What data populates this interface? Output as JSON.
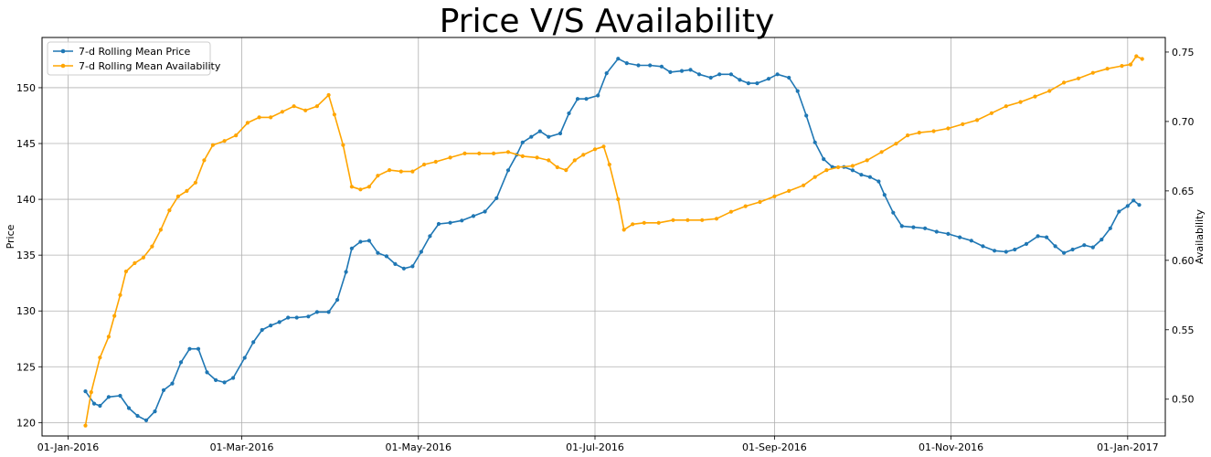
{
  "chart_data": {
    "type": "line",
    "title": "Price V/S Availability",
    "xlabel": "",
    "ylabel": "Price",
    "y2label": "Availability",
    "x_range": [
      "2015-12-23",
      "2017-01-14"
    ],
    "ylim": [
      118.8,
      154.5
    ],
    "y2lim": [
      0.4735,
      0.7605
    ],
    "grid": true,
    "legend_position": "top-left",
    "x_ticks": [
      {
        "date": "2016-01-01",
        "label": "01-Jan-2016"
      },
      {
        "date": "2016-03-01",
        "label": "01-Mar-2016"
      },
      {
        "date": "2016-05-01",
        "label": "01-May-2016"
      },
      {
        "date": "2016-07-01",
        "label": "01-Jul-2016"
      },
      {
        "date": "2016-09-01",
        "label": "01-Sep-2016"
      },
      {
        "date": "2016-11-01",
        "label": "01-Nov-2016"
      },
      {
        "date": "2017-01-01",
        "label": "01-Jan-2017"
      }
    ],
    "y_ticks": [
      120,
      125,
      130,
      135,
      140,
      145,
      150
    ],
    "y2_ticks": [
      0.5,
      0.55,
      0.6,
      0.65,
      0.7,
      0.75
    ],
    "series": [
      {
        "name": "7-d Rolling Mean Price",
        "axis": "left",
        "color": "#1f77b4",
        "points": [
          [
            "2016-01-07",
            122.8
          ],
          [
            "2016-01-10",
            121.7
          ],
          [
            "2016-01-12",
            121.5
          ],
          [
            "2016-01-15",
            122.3
          ],
          [
            "2016-01-19",
            122.4
          ],
          [
            "2016-01-22",
            121.3
          ],
          [
            "2016-01-25",
            120.6
          ],
          [
            "2016-01-28",
            120.2
          ],
          [
            "2016-01-31",
            121.0
          ],
          [
            "2016-02-03",
            122.9
          ],
          [
            "2016-02-06",
            123.5
          ],
          [
            "2016-02-09",
            125.4
          ],
          [
            "2016-02-12",
            126.6
          ],
          [
            "2016-02-15",
            126.6
          ],
          [
            "2016-02-18",
            124.5
          ],
          [
            "2016-02-21",
            123.8
          ],
          [
            "2016-02-24",
            123.6
          ],
          [
            "2016-02-27",
            124.0
          ],
          [
            "2016-03-02",
            125.8
          ],
          [
            "2016-03-05",
            127.2
          ],
          [
            "2016-03-08",
            128.3
          ],
          [
            "2016-03-11",
            128.7
          ],
          [
            "2016-03-14",
            129.0
          ],
          [
            "2016-03-17",
            129.4
          ],
          [
            "2016-03-20",
            129.4
          ],
          [
            "2016-03-24",
            129.5
          ],
          [
            "2016-03-27",
            129.9
          ],
          [
            "2016-03-31",
            129.9
          ],
          [
            "2016-04-03",
            131.0
          ],
          [
            "2016-04-06",
            133.5
          ],
          [
            "2016-04-08",
            135.6
          ],
          [
            "2016-04-11",
            136.2
          ],
          [
            "2016-04-14",
            136.3
          ],
          [
            "2016-04-17",
            135.2
          ],
          [
            "2016-04-20",
            134.9
          ],
          [
            "2016-04-23",
            134.2
          ],
          [
            "2016-04-26",
            133.8
          ],
          [
            "2016-04-29",
            134.0
          ],
          [
            "2016-05-02",
            135.3
          ],
          [
            "2016-05-05",
            136.7
          ],
          [
            "2016-05-08",
            137.8
          ],
          [
            "2016-05-12",
            137.9
          ],
          [
            "2016-05-16",
            138.1
          ],
          [
            "2016-05-20",
            138.5
          ],
          [
            "2016-05-24",
            138.9
          ],
          [
            "2016-05-28",
            140.1
          ],
          [
            "2016-06-01",
            142.6
          ],
          [
            "2016-06-04",
            144.0
          ],
          [
            "2016-06-06",
            145.1
          ],
          [
            "2016-06-09",
            145.6
          ],
          [
            "2016-06-12",
            146.1
          ],
          [
            "2016-06-15",
            145.6
          ],
          [
            "2016-06-19",
            145.9
          ],
          [
            "2016-06-22",
            147.7
          ],
          [
            "2016-06-25",
            149.0
          ],
          [
            "2016-06-28",
            149.0
          ],
          [
            "2016-07-02",
            149.3
          ],
          [
            "2016-07-05",
            151.3
          ],
          [
            "2016-07-09",
            152.6
          ],
          [
            "2016-07-12",
            152.2
          ],
          [
            "2016-07-16",
            152.0
          ],
          [
            "2016-07-20",
            152.0
          ],
          [
            "2016-07-24",
            151.9
          ],
          [
            "2016-07-27",
            151.4
          ],
          [
            "2016-07-31",
            151.5
          ],
          [
            "2016-08-03",
            151.6
          ],
          [
            "2016-08-06",
            151.2
          ],
          [
            "2016-08-10",
            150.9
          ],
          [
            "2016-08-13",
            151.2
          ],
          [
            "2016-08-17",
            151.2
          ],
          [
            "2016-08-20",
            150.7
          ],
          [
            "2016-08-23",
            150.4
          ],
          [
            "2016-08-26",
            150.4
          ],
          [
            "2016-08-30",
            150.8
          ],
          [
            "2016-09-02",
            151.2
          ],
          [
            "2016-09-06",
            150.9
          ],
          [
            "2016-09-09",
            149.7
          ],
          [
            "2016-09-12",
            147.5
          ],
          [
            "2016-09-15",
            145.1
          ],
          [
            "2016-09-18",
            143.6
          ],
          [
            "2016-09-21",
            142.9
          ],
          [
            "2016-09-25",
            142.9
          ],
          [
            "2016-09-28",
            142.6
          ],
          [
            "2016-10-01",
            142.2
          ],
          [
            "2016-10-04",
            142.0
          ],
          [
            "2016-10-07",
            141.6
          ],
          [
            "2016-10-09",
            140.4
          ],
          [
            "2016-10-12",
            138.8
          ],
          [
            "2016-10-15",
            137.6
          ],
          [
            "2016-10-19",
            137.5
          ],
          [
            "2016-10-23",
            137.4
          ],
          [
            "2016-10-27",
            137.1
          ],
          [
            "2016-10-31",
            136.9
          ],
          [
            "2016-11-04",
            136.6
          ],
          [
            "2016-11-08",
            136.3
          ],
          [
            "2016-11-12",
            135.8
          ],
          [
            "2016-11-16",
            135.4
          ],
          [
            "2016-11-20",
            135.3
          ],
          [
            "2016-11-23",
            135.5
          ],
          [
            "2016-11-27",
            136.0
          ],
          [
            "2016-12-01",
            136.7
          ],
          [
            "2016-12-04",
            136.6
          ],
          [
            "2016-12-07",
            135.8
          ],
          [
            "2016-12-10",
            135.2
          ],
          [
            "2016-12-13",
            135.5
          ],
          [
            "2016-12-17",
            135.9
          ],
          [
            "2016-12-20",
            135.7
          ],
          [
            "2016-12-23",
            136.4
          ],
          [
            "2016-12-26",
            137.4
          ],
          [
            "2016-12-29",
            138.9
          ],
          [
            "2017-01-01",
            139.4
          ],
          [
            "2017-01-03",
            139.9
          ],
          [
            "2017-01-05",
            139.5
          ]
        ]
      },
      {
        "name": "7-d Rolling Mean Availability",
        "axis": "right",
        "color": "#ffa500",
        "points": [
          [
            "2016-01-07",
            0.481
          ],
          [
            "2016-01-09",
            0.505
          ],
          [
            "2016-01-12",
            0.53
          ],
          [
            "2016-01-15",
            0.545
          ],
          [
            "2016-01-17",
            0.56
          ],
          [
            "2016-01-19",
            0.575
          ],
          [
            "2016-01-21",
            0.592
          ],
          [
            "2016-01-24",
            0.598
          ],
          [
            "2016-01-27",
            0.602
          ],
          [
            "2016-01-30",
            0.61
          ],
          [
            "2016-02-02",
            0.622
          ],
          [
            "2016-02-05",
            0.636
          ],
          [
            "2016-02-08",
            0.646
          ],
          [
            "2016-02-11",
            0.65
          ],
          [
            "2016-02-14",
            0.656
          ],
          [
            "2016-02-17",
            0.672
          ],
          [
            "2016-02-20",
            0.683
          ],
          [
            "2016-02-24",
            0.686
          ],
          [
            "2016-02-28",
            0.69
          ],
          [
            "2016-03-03",
            0.699
          ],
          [
            "2016-03-07",
            0.703
          ],
          [
            "2016-03-11",
            0.703
          ],
          [
            "2016-03-15",
            0.707
          ],
          [
            "2016-03-19",
            0.711
          ],
          [
            "2016-03-23",
            0.708
          ],
          [
            "2016-03-27",
            0.711
          ],
          [
            "2016-03-31",
            0.719
          ],
          [
            "2016-04-02",
            0.705
          ],
          [
            "2016-04-05",
            0.683
          ],
          [
            "2016-04-08",
            0.653
          ],
          [
            "2016-04-11",
            0.651
          ],
          [
            "2016-04-14",
            0.653
          ],
          [
            "2016-04-17",
            0.661
          ],
          [
            "2016-04-21",
            0.665
          ],
          [
            "2016-04-25",
            0.664
          ],
          [
            "2016-04-29",
            0.664
          ],
          [
            "2016-05-03",
            0.669
          ],
          [
            "2016-05-07",
            0.671
          ],
          [
            "2016-05-12",
            0.674
          ],
          [
            "2016-05-17",
            0.677
          ],
          [
            "2016-05-22",
            0.677
          ],
          [
            "2016-05-27",
            0.677
          ],
          [
            "2016-06-01",
            0.678
          ],
          [
            "2016-06-06",
            0.675
          ],
          [
            "2016-06-11",
            0.674
          ],
          [
            "2016-06-15",
            0.672
          ],
          [
            "2016-06-18",
            0.667
          ],
          [
            "2016-06-21",
            0.665
          ],
          [
            "2016-06-24",
            0.672
          ],
          [
            "2016-06-27",
            0.676
          ],
          [
            "2016-07-01",
            0.68
          ],
          [
            "2016-07-04",
            0.682
          ],
          [
            "2016-07-06",
            0.669
          ],
          [
            "2016-07-09",
            0.644
          ],
          [
            "2016-07-11",
            0.622
          ],
          [
            "2016-07-14",
            0.626
          ],
          [
            "2016-07-18",
            0.627
          ],
          [
            "2016-07-23",
            0.627
          ],
          [
            "2016-07-28",
            0.629
          ],
          [
            "2016-08-02",
            0.629
          ],
          [
            "2016-08-07",
            0.629
          ],
          [
            "2016-08-12",
            0.63
          ],
          [
            "2016-08-17",
            0.635
          ],
          [
            "2016-08-22",
            0.639
          ],
          [
            "2016-08-27",
            0.642
          ],
          [
            "2016-09-01",
            0.646
          ],
          [
            "2016-09-06",
            0.65
          ],
          [
            "2016-09-11",
            0.654
          ],
          [
            "2016-09-15",
            0.66
          ],
          [
            "2016-09-19",
            0.665
          ],
          [
            "2016-09-23",
            0.667
          ],
          [
            "2016-09-28",
            0.668
          ],
          [
            "2016-10-03",
            0.672
          ],
          [
            "2016-10-08",
            0.678
          ],
          [
            "2016-10-13",
            0.684
          ],
          [
            "2016-10-17",
            0.69
          ],
          [
            "2016-10-21",
            0.692
          ],
          [
            "2016-10-26",
            0.693
          ],
          [
            "2016-10-31",
            0.695
          ],
          [
            "2016-11-05",
            0.698
          ],
          [
            "2016-11-10",
            0.701
          ],
          [
            "2016-11-15",
            0.706
          ],
          [
            "2016-11-20",
            0.711
          ],
          [
            "2016-11-25",
            0.714
          ],
          [
            "2016-11-30",
            0.718
          ],
          [
            "2016-12-05",
            0.722
          ],
          [
            "2016-12-10",
            0.728
          ],
          [
            "2016-12-15",
            0.731
          ],
          [
            "2016-12-20",
            0.735
          ],
          [
            "2016-12-25",
            0.738
          ],
          [
            "2016-12-30",
            0.74
          ],
          [
            "2017-01-02",
            0.741
          ],
          [
            "2017-01-04",
            0.747
          ],
          [
            "2017-01-06",
            0.745
          ]
        ]
      }
    ]
  }
}
